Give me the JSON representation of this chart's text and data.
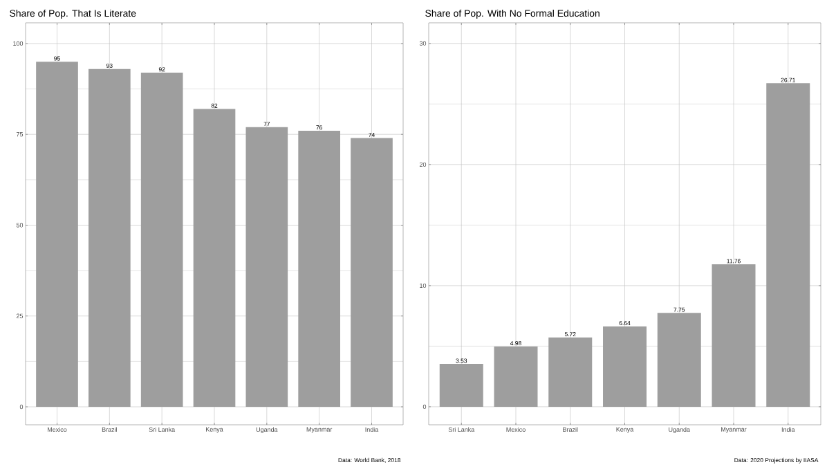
{
  "chart_data": [
    {
      "type": "bar",
      "title": "Share of Pop. That Is Literate",
      "categories": [
        "Mexico",
        "Brazil",
        "Sri Lanka",
        "Kenya",
        "Uganda",
        "Myanmar",
        "India"
      ],
      "values": [
        95,
        93,
        92,
        82,
        77,
        76,
        74
      ],
      "color": "#9e9e9e",
      "ylim": [
        -4.95,
        105.7
      ],
      "yticks": [
        0,
        25,
        50,
        75,
        100
      ],
      "grid": true,
      "data_labels": true,
      "annotations": [
        "Data: World Bank, 2018"
      ]
    },
    {
      "type": "bar",
      "title": "Share of Pop. With No Formal Education",
      "categories": [
        "Sri Lanka",
        "Mexico",
        "Brazil",
        "Kenya",
        "Uganda",
        "Myanmar",
        "India"
      ],
      "values": [
        3.53,
        4.98,
        5.72,
        6.64,
        7.75,
        11.76,
        26.71
      ],
      "color": "#9e9e9e",
      "ylim": [
        -1.49,
        31.7
      ],
      "yticks": [
        0,
        10,
        20,
        30
      ],
      "grid": true,
      "data_labels": true,
      "annotations": [
        "Data: 2020 Projections by IIASA"
      ]
    }
  ]
}
